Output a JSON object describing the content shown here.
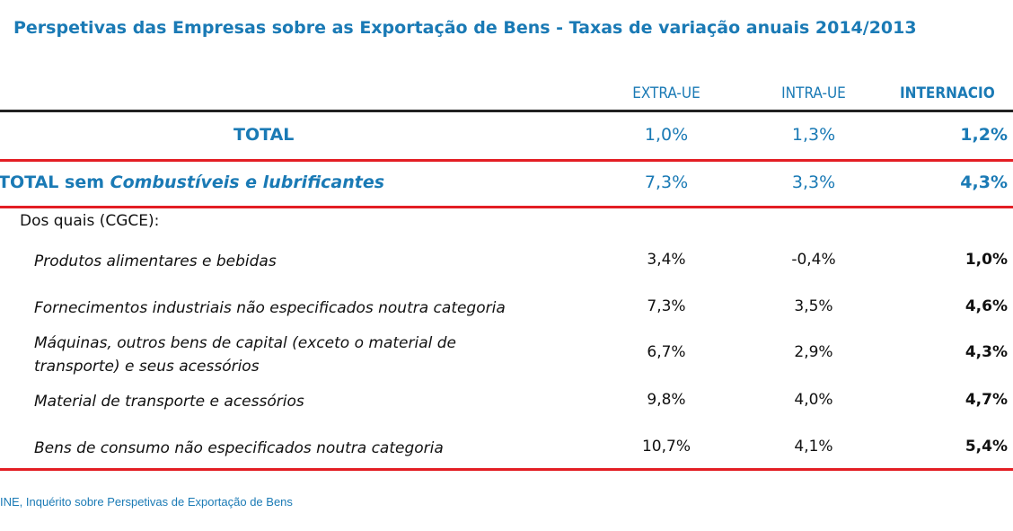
{
  "title": "Perspetivas das Empresas sobre as Exportação de Bens - Taxas de variação anuais 2014/2013",
  "chart_data": {
    "type": "table",
    "columns": [
      "EXTRA-UE",
      "INTRA-UE",
      "INTERNACIO"
    ],
    "total": {
      "label": "TOTAL",
      "values": [
        "1,0%",
        "1,3%",
        "1,2%"
      ]
    },
    "total_sem": {
      "label_prefix": "TOTAL sem ",
      "label_italic": "Combustíveis e lubrificantes",
      "values": [
        "7,3%",
        "3,3%",
        "4,3%"
      ]
    },
    "subheader": "Dos quais (CGCE):",
    "rows": [
      {
        "label": "Produtos alimentares e bebidas",
        "values": [
          "3,4%",
          "-0,4%",
          "1,0%"
        ]
      },
      {
        "label": "Fornecimentos industriais não especificados noutra categoria",
        "values": [
          "7,3%",
          "3,5%",
          "4,6%"
        ]
      },
      {
        "label": "Máquinas, outros bens de capital (exceto o material de",
        "label2": "transporte) e seus acessórios",
        "values": [
          "6,7%",
          "2,9%",
          "4,3%"
        ]
      },
      {
        "label": "Material de transporte e acessórios",
        "values": [
          "9,8%",
          "4,0%",
          "4,7%"
        ]
      },
      {
        "label": "Bens de consumo não especificados noutra categoria",
        "values": [
          "10,7%",
          "4,1%",
          "5,4%"
        ]
      }
    ]
  },
  "source": "INE, Inquérito sobre Perspetivas de Exportação de Bens",
  "colors": {
    "accent": "#1a7ab5",
    "rule": "#e31e24"
  }
}
